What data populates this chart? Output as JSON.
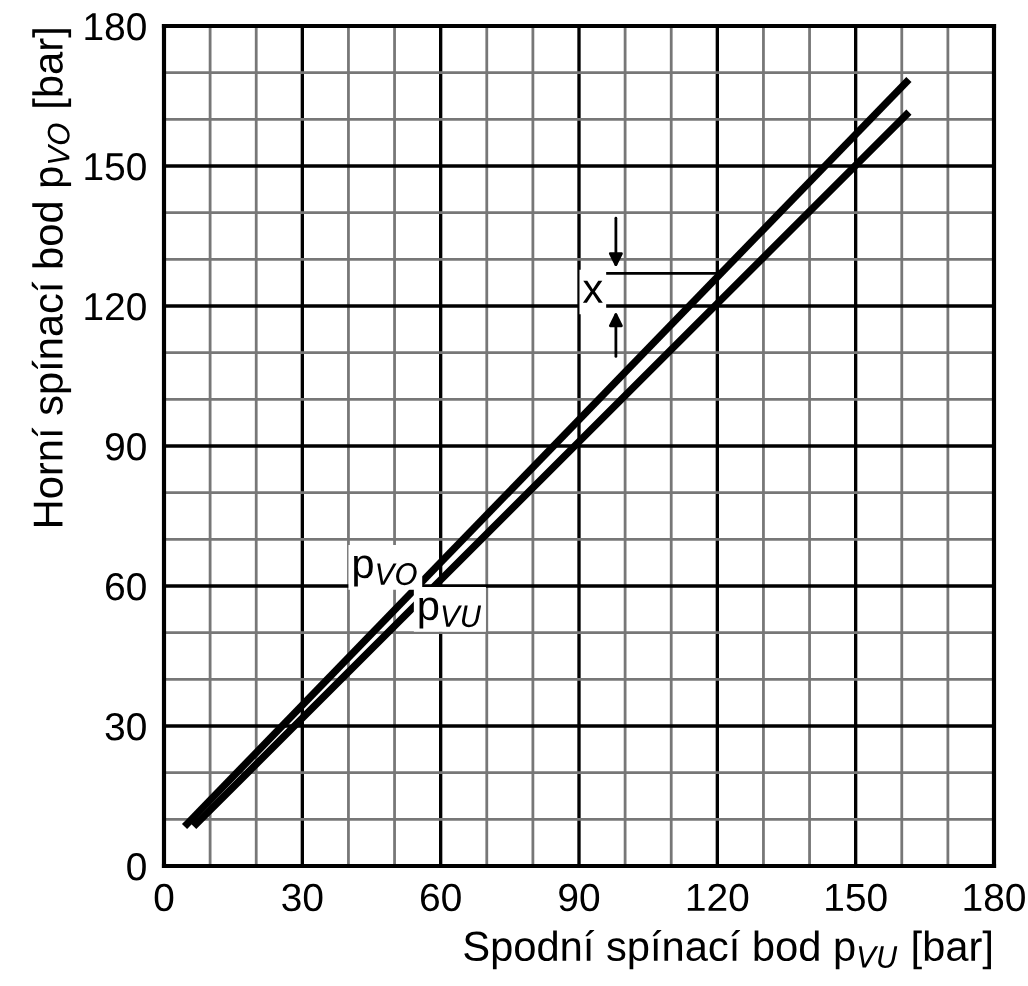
{
  "chart_data": {
    "type": "line",
    "xlabel": "Spodní spínací bod p$_{VU}$ [bar]",
    "ylabel": "Horní spínací bod p$_{VO}$ [bar]",
    "series": [
      {
        "x": [
          5,
          161
        ],
        "values": [
          9,
          168
        ],
        "color": "#000000"
      },
      {
        "x": [
          7,
          161
        ],
        "values": [
          9,
          161
        ],
        "color": "#000000"
      }
    ],
    "annotations": [
      {
        "text": "p$_{VO}$",
        "x": 48,
        "y": 64
      },
      {
        "text": "p$_{VU}$",
        "x": 62,
        "y": 55
      },
      {
        "text": "x",
        "x": 93,
        "y": 123
      }
    ],
    "xlim": [
      0,
      180
    ],
    "ylim": [
      0,
      180
    ],
    "xticks": [
      0,
      {
        "value": 10,
        "label": null
      },
      {
        "value": 20,
        "label": null
      },
      30,
      {
        "value": 40,
        "label": null
      },
      {
        "value": 50,
        "label": null
      },
      60,
      {
        "value": 70,
        "label": null
      },
      {
        "value": 80,
        "label": null
      },
      90,
      {
        "value": 100,
        "label": null
      },
      {
        "value": 110,
        "label": null
      },
      120,
      {
        "value": 130,
        "label": null
      },
      {
        "value": 140,
        "label": null
      },
      150,
      {
        "value": 160,
        "label": null
      },
      {
        "value": 170,
        "label": null
      },
      180
    ],
    "yticks": [
      0,
      {
        "value": 10,
        "label": null
      },
      {
        "value": 20,
        "label": null
      },
      30,
      {
        "value": 40,
        "label": null
      },
      {
        "value": 50,
        "label": null
      },
      60,
      {
        "value": 70,
        "label": null
      },
      {
        "value": 80,
        "label": null
      },
      90,
      {
        "value": 100,
        "label": null
      },
      {
        "value": 110,
        "label": null
      },
      120,
      {
        "value": 130,
        "label": null
      },
      {
        "value": 140,
        "label": null
      },
      150,
      {
        "value": 160,
        "label": null
      },
      {
        "value": 170,
        "label": null
      },
      180
    ],
    "grid": true,
    "line_style": "solid",
    "marker": "none"
  }
}
